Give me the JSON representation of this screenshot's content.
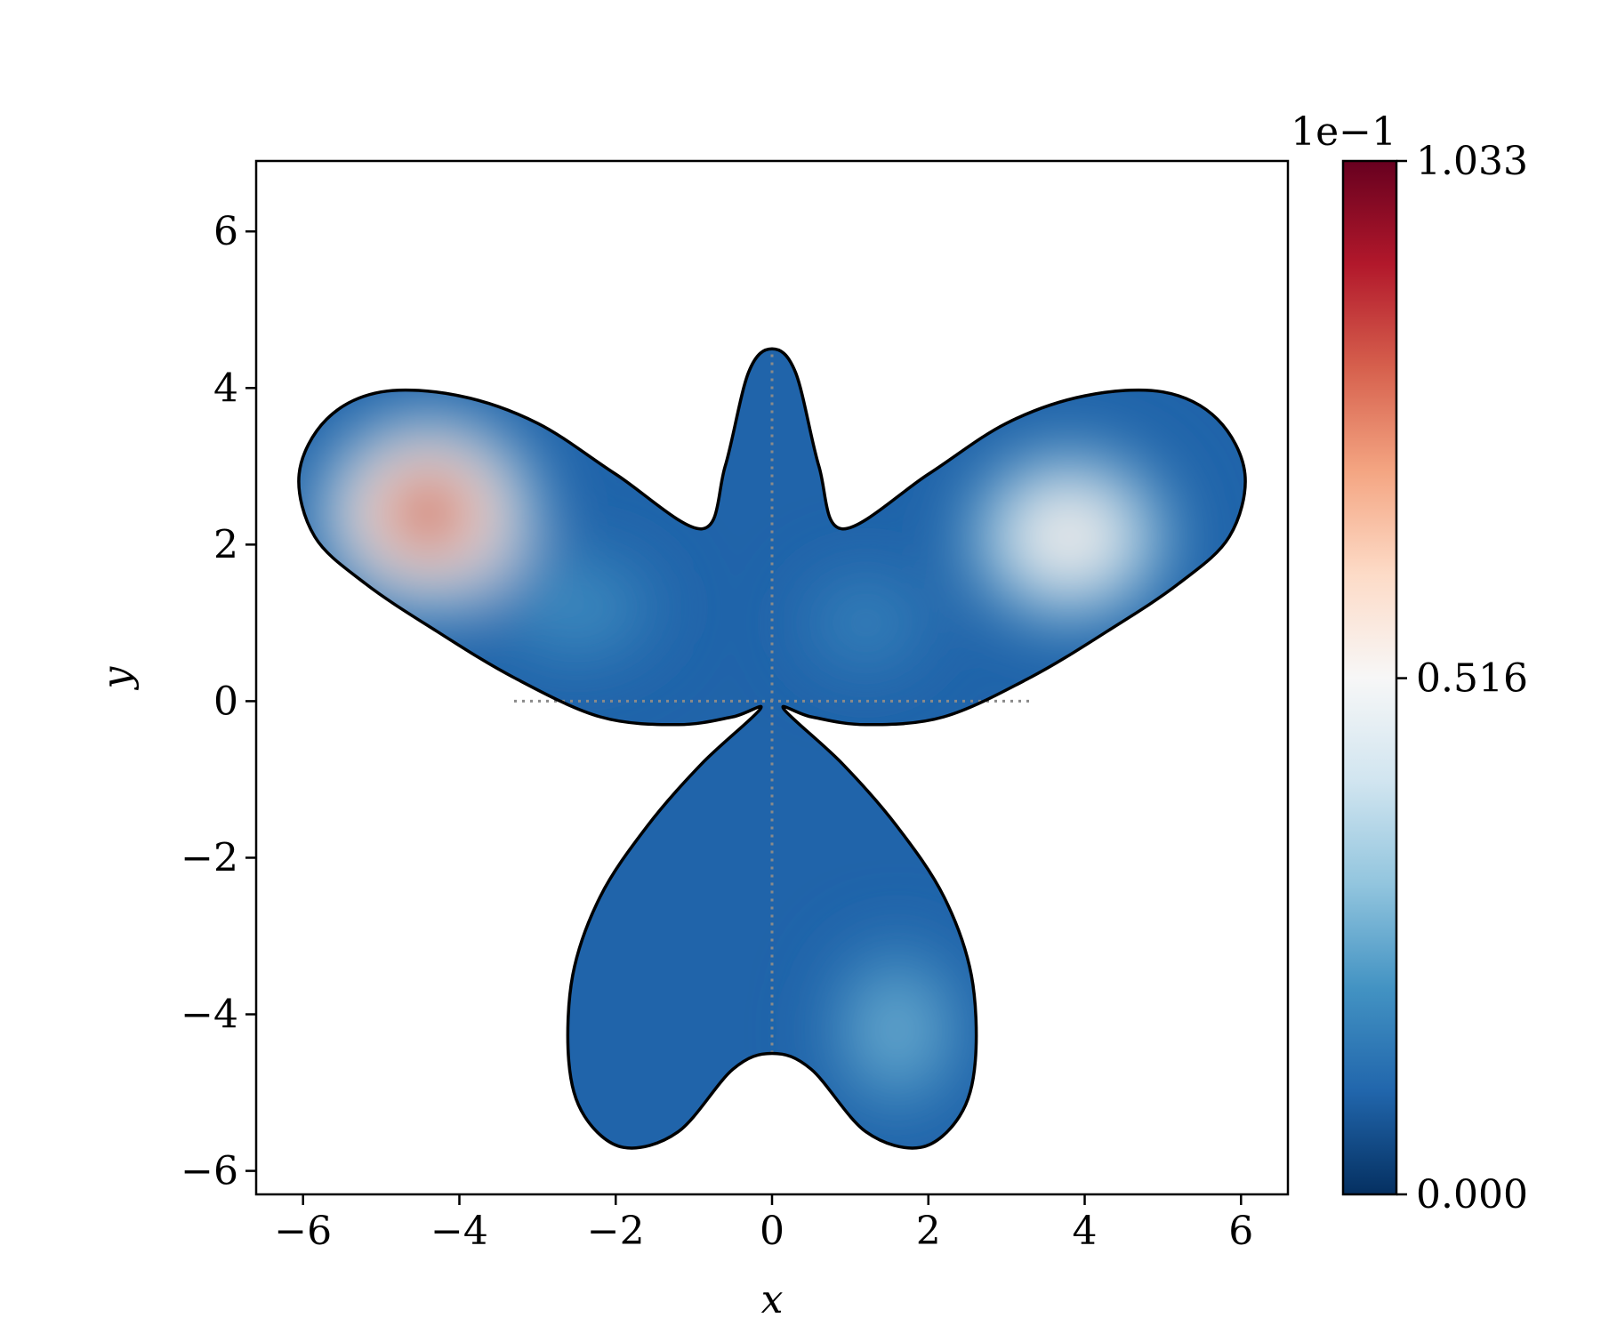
{
  "chart_data": {
    "type": "heatmap",
    "title": "",
    "xlabel": "x",
    "ylabel": "y",
    "xlim": [
      -6.6,
      6.6
    ],
    "ylim": [
      -6.3,
      6.9
    ],
    "x_ticks": [
      -6,
      -4,
      -2,
      0,
      2,
      4,
      6
    ],
    "y_ticks": [
      -6,
      -4,
      -2,
      0,
      2,
      4,
      6
    ],
    "x_tick_labels": [
      "−6",
      "−4",
      "−2",
      "0",
      "2",
      "4",
      "6"
    ],
    "y_tick_labels": [
      "−6",
      "−4",
      "−2",
      "0",
      "2",
      "4",
      "6"
    ],
    "grid": false,
    "colormap": "RdBu_r",
    "colorbar": {
      "min": 0.0,
      "max": 1.033,
      "ticks": [
        0.0,
        0.516,
        1.033
      ],
      "tick_labels": [
        "0.000",
        "0.516",
        "1.033"
      ],
      "offset_label": "1e−1",
      "colors": [
        "#053061",
        "#2166ac",
        "#4393c3",
        "#92c5de",
        "#d1e5f0",
        "#f7f7f7",
        "#fddbc7",
        "#f4a582",
        "#d6604d",
        "#b2182b",
        "#67001f"
      ]
    },
    "domain_outline": [
      [
        0,
        4.5
      ],
      [
        0.3,
        4.2
      ],
      [
        0.6,
        3.0
      ],
      [
        0.9,
        2.2
      ],
      [
        2.0,
        2.9
      ],
      [
        3.0,
        3.55
      ],
      [
        4.0,
        3.9
      ],
      [
        5.0,
        3.95
      ],
      [
        5.7,
        3.6
      ],
      [
        6.05,
        2.9
      ],
      [
        5.85,
        2.1
      ],
      [
        5.2,
        1.5
      ],
      [
        4.3,
        0.9
      ],
      [
        3.3,
        0.3
      ],
      [
        2.2,
        -0.2
      ],
      [
        1.2,
        -0.3
      ],
      [
        0.5,
        -0.2
      ],
      [
        0.15,
        -0.1
      ],
      [
        0.9,
        -0.8
      ],
      [
        1.6,
        -1.6
      ],
      [
        2.2,
        -2.5
      ],
      [
        2.55,
        -3.5
      ],
      [
        2.6,
        -4.6
      ],
      [
        2.4,
        -5.3
      ],
      [
        1.9,
        -5.7
      ],
      [
        1.2,
        -5.5
      ],
      [
        0.5,
        -4.7
      ],
      [
        0,
        -4.5
      ],
      [
        -0.5,
        -4.7
      ],
      [
        -1.2,
        -5.5
      ],
      [
        -1.9,
        -5.7
      ],
      [
        -2.4,
        -5.3
      ],
      [
        -2.6,
        -4.6
      ],
      [
        -2.55,
        -3.5
      ],
      [
        -2.2,
        -2.5
      ],
      [
        -1.6,
        -1.6
      ],
      [
        -0.9,
        -0.8
      ],
      [
        -0.15,
        -0.1
      ],
      [
        -0.5,
        -0.2
      ],
      [
        -1.2,
        -0.3
      ],
      [
        -2.2,
        -0.2
      ],
      [
        -3.3,
        0.3
      ],
      [
        -4.3,
        0.9
      ],
      [
        -5.2,
        1.5
      ],
      [
        -5.85,
        2.1
      ],
      [
        -6.05,
        2.9
      ],
      [
        -5.7,
        3.6
      ],
      [
        -5.0,
        3.95
      ],
      [
        -4.0,
        3.9
      ],
      [
        -3.0,
        3.55
      ],
      [
        -2.0,
        2.9
      ],
      [
        -0.9,
        2.2
      ],
      [
        -0.6,
        3.0
      ],
      [
        -0.3,
        4.2
      ]
    ],
    "field_features": [
      {
        "x": -4.4,
        "y": 2.4,
        "value": 1.033,
        "rx": 1.45,
        "ry": 1.3
      },
      {
        "x": 3.8,
        "y": 2.1,
        "value": 0.62,
        "rx": 1.4,
        "ry": 1.2
      },
      {
        "x": 1.6,
        "y": -4.2,
        "value": 0.3,
        "rx": 0.95,
        "ry": 1.2
      },
      {
        "x": 1.2,
        "y": 1.0,
        "value": 0.2,
        "rx": 0.9,
        "ry": 0.7
      },
      {
        "x": -2.5,
        "y": 1.2,
        "value": 0.22,
        "rx": 1.2,
        "ry": 0.8
      }
    ],
    "field_base_value": 0.1,
    "reference_lines": [
      {
        "x": [
          0,
          0
        ],
        "y": [
          -4.5,
          4.5
        ]
      },
      {
        "x": [
          -3.3,
          3.3
        ],
        "y": [
          0,
          0
        ]
      }
    ]
  }
}
